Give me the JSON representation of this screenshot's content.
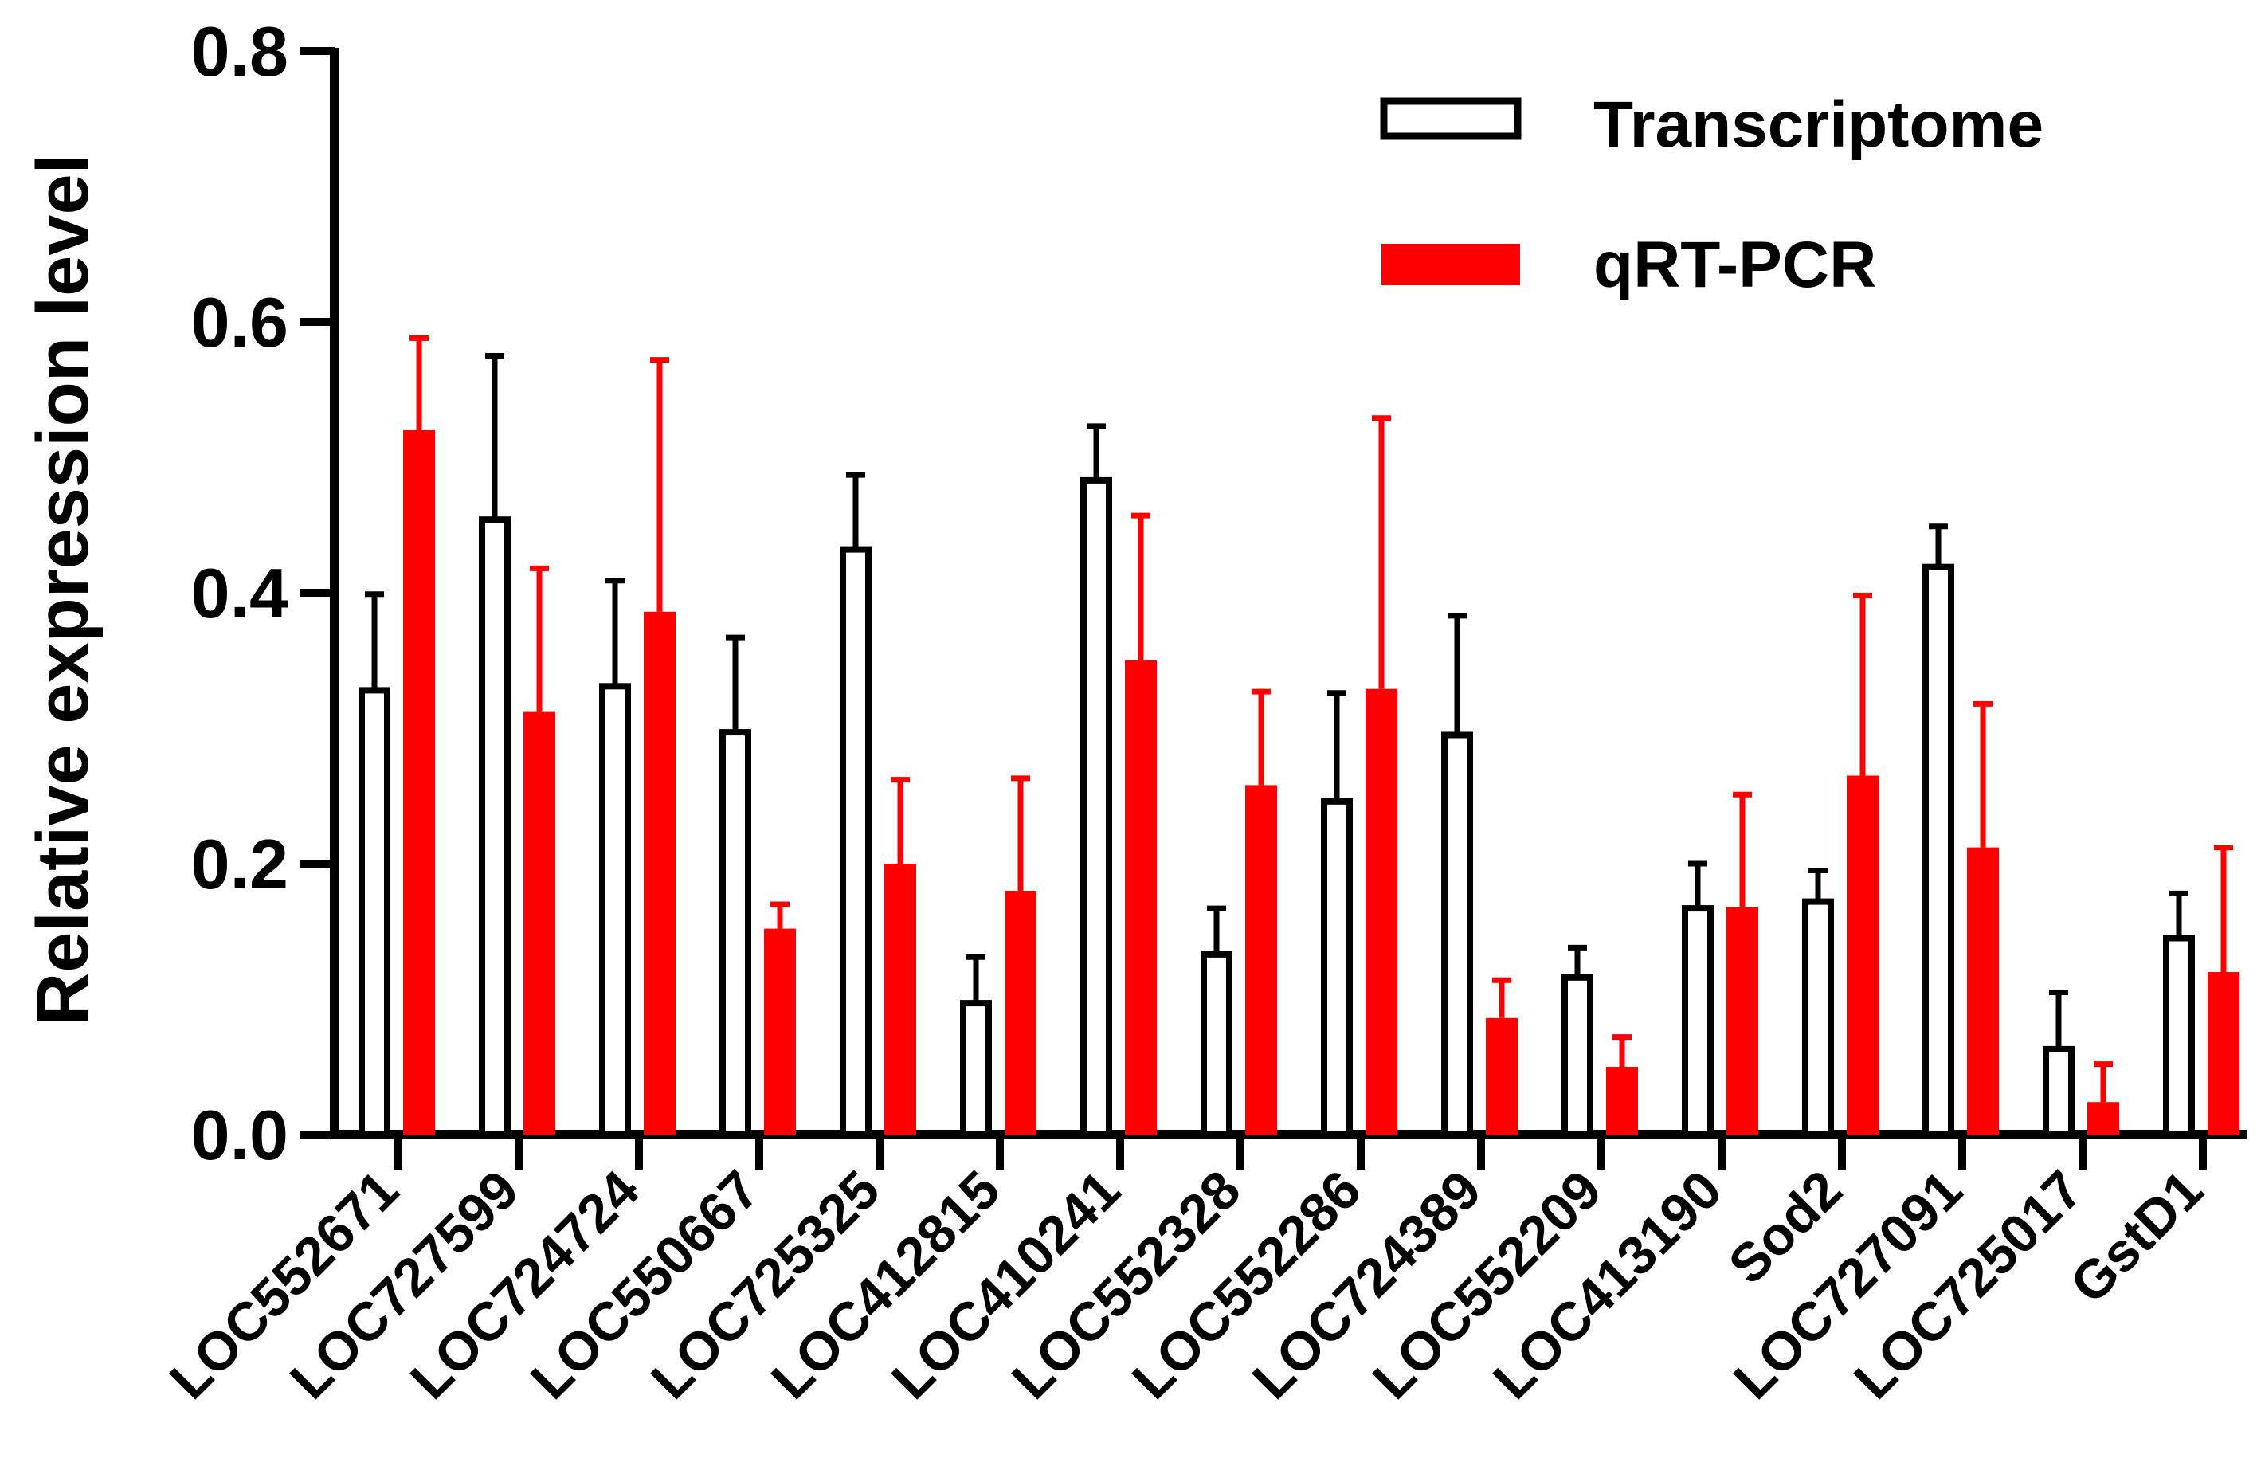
{
  "chart_data": {
    "type": "bar",
    "title": "",
    "xlabel": "",
    "ylabel": "Relative expression level",
    "ylim": [
      0,
      0.8
    ],
    "yticks": [
      "0.0",
      "0.2",
      "0.4",
      "0.6",
      "0.8"
    ],
    "grid": false,
    "legend_position": "top-right",
    "categories": [
      "LOC552671",
      "LOC727599",
      "LOC724724",
      "LOC550667",
      "LOC725325",
      "LOC412815",
      "LOC410241",
      "LOC552328",
      "LOC552286",
      "LOC724389",
      "LOC552209",
      "LOC413190",
      "Sod2",
      "LOC727091",
      "LOC725017",
      "GstD1"
    ],
    "series": [
      {
        "name": "Transcriptome",
        "fill": "#ffffff",
        "stroke": "#000000",
        "values": [
          0.328,
          0.454,
          0.331,
          0.297,
          0.432,
          0.097,
          0.483,
          0.133,
          0.246,
          0.295,
          0.116,
          0.167,
          0.172,
          0.419,
          0.063,
          0.145
        ],
        "errors": [
          0.071,
          0.121,
          0.078,
          0.07,
          0.055,
          0.034,
          0.04,
          0.034,
          0.08,
          0.088,
          0.022,
          0.033,
          0.023,
          0.03,
          0.042,
          0.033
        ]
      },
      {
        "name": "qRT-PCR",
        "fill": "#ff0000",
        "stroke": "#ff0000",
        "values": [
          0.52,
          0.312,
          0.386,
          0.152,
          0.2,
          0.18,
          0.35,
          0.258,
          0.329,
          0.086,
          0.05,
          0.168,
          0.265,
          0.212,
          0.024,
          0.12
        ],
        "errors": [
          0.068,
          0.106,
          0.186,
          0.018,
          0.062,
          0.083,
          0.107,
          0.069,
          0.2,
          0.028,
          0.022,
          0.083,
          0.133,
          0.106,
          0.028,
          0.092
        ]
      }
    ]
  }
}
